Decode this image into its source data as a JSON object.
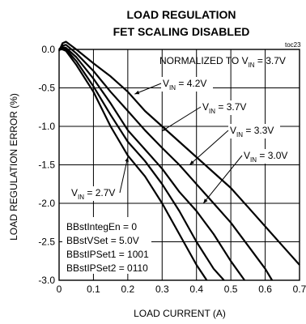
{
  "chart_data": {
    "type": "line",
    "title": "LOAD REGULATION",
    "subtitle": "FET SCALING DISABLED",
    "figure_code": "toc23",
    "xlabel": "LOAD CURRENT (A)",
    "ylabel": "LOAD REGULATION ERROR (%)",
    "xlim": [
      0,
      0.7
    ],
    "ylim": [
      -3.0,
      0.0
    ],
    "x_ticks": [
      "0",
      "0.1",
      "0.2",
      "0.3",
      "0.4",
      "0.5",
      "0.6",
      "0.7"
    ],
    "y_ticks": [
      "0.0",
      "-0.5",
      "-1.0",
      "-1.5",
      "-2.0",
      "-2.5",
      "-3.0"
    ],
    "grid": true,
    "note": {
      "pre": "NORMALIZED TO V",
      "sub": "IN",
      "post": " = 3.7V"
    },
    "settings": [
      "BBstIntegEn = 0",
      "BBstVSet = 5.0V",
      "BBstIPSet1 = 1001",
      "BBstIPSet2 = 0110"
    ],
    "series": [
      {
        "name": {
          "pre": "V",
          "sub": "IN",
          "post": " = 4.2V"
        },
        "x": [
          0.0,
          0.01,
          0.02,
          0.05,
          0.1,
          0.15,
          0.2,
          0.25,
          0.3,
          0.35,
          0.4,
          0.45,
          0.5,
          0.55,
          0.6,
          0.65,
          0.7
        ],
        "y": [
          -0.02,
          0.08,
          0.1,
          0.0,
          -0.18,
          -0.35,
          -0.55,
          -0.8,
          -1.0,
          -1.2,
          -1.4,
          -1.6,
          -1.8,
          -2.05,
          -2.3,
          -2.55,
          -2.8
        ]
      },
      {
        "name": {
          "pre": "V",
          "sub": "IN",
          "post": " = 3.7V"
        },
        "x": [
          0.0,
          0.01,
          0.02,
          0.05,
          0.1,
          0.15,
          0.2,
          0.25,
          0.3,
          0.35,
          0.4,
          0.45,
          0.5,
          0.55,
          0.6,
          0.62
        ],
        "y": [
          0.0,
          0.05,
          0.06,
          -0.05,
          -0.28,
          -0.55,
          -0.8,
          -1.05,
          -1.28,
          -1.5,
          -1.75,
          -2.0,
          -2.25,
          -2.55,
          -2.85,
          -3.0
        ]
      },
      {
        "name": {
          "pre": "V",
          "sub": "IN",
          "post": " = 3.3V"
        },
        "x": [
          0.0,
          0.01,
          0.02,
          0.05,
          0.1,
          0.15,
          0.2,
          0.25,
          0.3,
          0.35,
          0.4,
          0.45,
          0.5,
          0.54
        ],
        "y": [
          0.0,
          0.03,
          0.02,
          -0.1,
          -0.38,
          -0.7,
          -1.05,
          -1.3,
          -1.55,
          -1.85,
          -2.1,
          -2.4,
          -2.75,
          -3.0
        ]
      },
      {
        "name": {
          "pre": "V",
          "sub": "IN",
          "post": " = 3.0V"
        },
        "x": [
          0.0,
          0.01,
          0.02,
          0.05,
          0.1,
          0.15,
          0.2,
          0.25,
          0.3,
          0.35,
          0.4,
          0.45,
          0.48
        ],
        "y": [
          0.0,
          0.02,
          0.0,
          -0.15,
          -0.48,
          -0.85,
          -1.2,
          -1.45,
          -1.75,
          -2.1,
          -2.5,
          -2.85,
          -3.0
        ]
      },
      {
        "name": {
          "pre": "V",
          "sub": "IN",
          "post": " = 2.7V"
        },
        "x": [
          0.0,
          0.01,
          0.02,
          0.05,
          0.1,
          0.15,
          0.2,
          0.25,
          0.3,
          0.35,
          0.4,
          0.43
        ],
        "y": [
          0.0,
          0.0,
          -0.02,
          -0.2,
          -0.55,
          -1.0,
          -1.38,
          -1.65,
          -2.0,
          -2.4,
          -2.8,
          -3.0
        ]
      }
    ],
    "annotations": [
      {
        "series": 0
      },
      {
        "series": 1
      },
      {
        "series": 2
      },
      {
        "series": 3
      },
      {
        "series": 4
      }
    ]
  }
}
